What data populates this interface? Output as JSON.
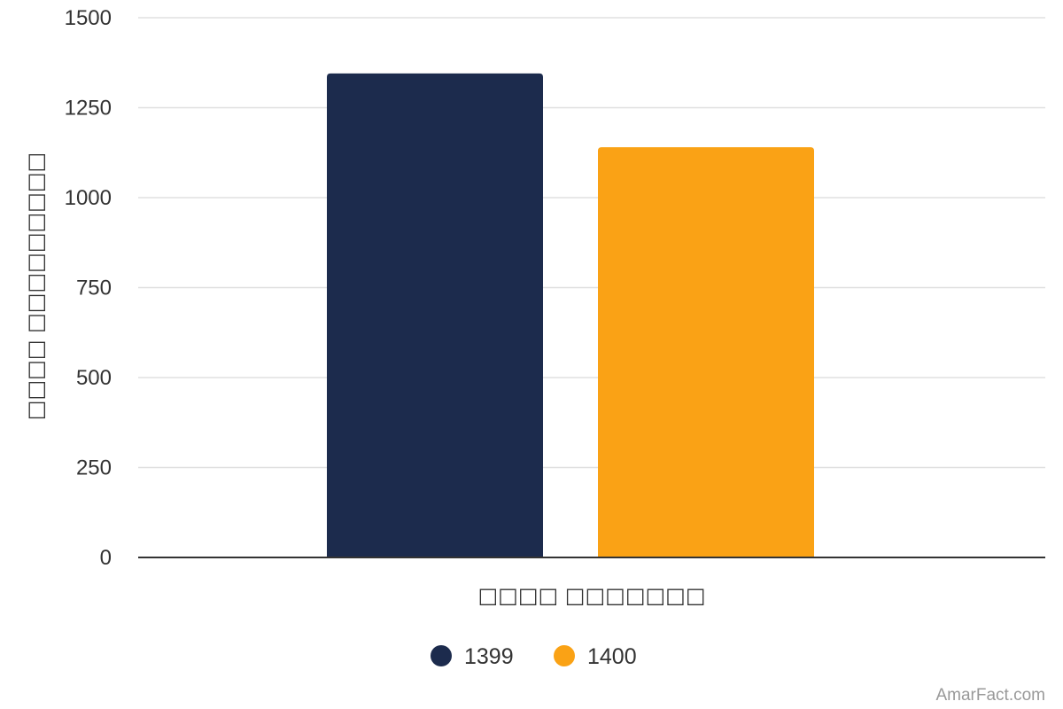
{
  "chart_data": {
    "type": "bar",
    "categories": [
      "□□□□ □□□□□□□"
    ],
    "series": [
      {
        "name": "1399",
        "values": [
          1345
        ],
        "color": "#1c2b4d"
      },
      {
        "name": "1400",
        "values": [
          1140
        ],
        "color": "#faa215"
      }
    ],
    "xlabel": "□□□□ □□□□□□□",
    "ylabel": "□□□□ □□□□□□□□□",
    "ylim": [
      0,
      1500
    ],
    "yticks": [
      0,
      250,
      500,
      750,
      1000,
      1250,
      1500
    ],
    "grid": true,
    "legend_position": "bottom-center"
  },
  "watermark": "AmarFact.com"
}
